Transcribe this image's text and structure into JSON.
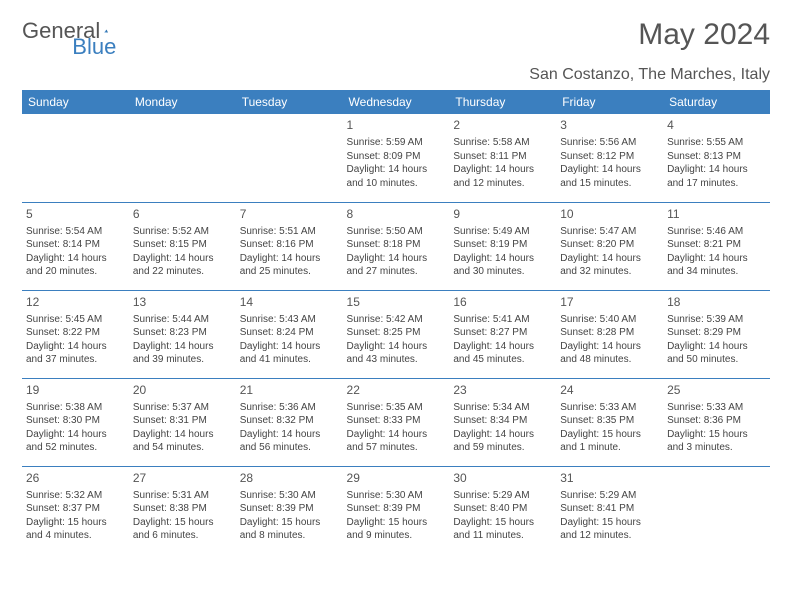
{
  "logo": {
    "text1": "General",
    "text2": "Blue"
  },
  "title": "May 2024",
  "location": "San Costanzo, The Marches, Italy",
  "colors": {
    "header_bg": "#3b7fbf",
    "header_text": "#ffffff",
    "border": "#3b7fbf",
    "body_text": "#444444",
    "title_text": "#555555",
    "page_bg": "#ffffff"
  },
  "weekdays": [
    "Sunday",
    "Monday",
    "Tuesday",
    "Wednesday",
    "Thursday",
    "Friday",
    "Saturday"
  ],
  "weeks": [
    [
      null,
      null,
      null,
      {
        "n": "1",
        "sr": "5:59 AM",
        "ss": "8:09 PM",
        "dl": "14 hours and 10 minutes."
      },
      {
        "n": "2",
        "sr": "5:58 AM",
        "ss": "8:11 PM",
        "dl": "14 hours and 12 minutes."
      },
      {
        "n": "3",
        "sr": "5:56 AM",
        "ss": "8:12 PM",
        "dl": "14 hours and 15 minutes."
      },
      {
        "n": "4",
        "sr": "5:55 AM",
        "ss": "8:13 PM",
        "dl": "14 hours and 17 minutes."
      }
    ],
    [
      {
        "n": "5",
        "sr": "5:54 AM",
        "ss": "8:14 PM",
        "dl": "14 hours and 20 minutes."
      },
      {
        "n": "6",
        "sr": "5:52 AM",
        "ss": "8:15 PM",
        "dl": "14 hours and 22 minutes."
      },
      {
        "n": "7",
        "sr": "5:51 AM",
        "ss": "8:16 PM",
        "dl": "14 hours and 25 minutes."
      },
      {
        "n": "8",
        "sr": "5:50 AM",
        "ss": "8:18 PM",
        "dl": "14 hours and 27 minutes."
      },
      {
        "n": "9",
        "sr": "5:49 AM",
        "ss": "8:19 PM",
        "dl": "14 hours and 30 minutes."
      },
      {
        "n": "10",
        "sr": "5:47 AM",
        "ss": "8:20 PM",
        "dl": "14 hours and 32 minutes."
      },
      {
        "n": "11",
        "sr": "5:46 AM",
        "ss": "8:21 PM",
        "dl": "14 hours and 34 minutes."
      }
    ],
    [
      {
        "n": "12",
        "sr": "5:45 AM",
        "ss": "8:22 PM",
        "dl": "14 hours and 37 minutes."
      },
      {
        "n": "13",
        "sr": "5:44 AM",
        "ss": "8:23 PM",
        "dl": "14 hours and 39 minutes."
      },
      {
        "n": "14",
        "sr": "5:43 AM",
        "ss": "8:24 PM",
        "dl": "14 hours and 41 minutes."
      },
      {
        "n": "15",
        "sr": "5:42 AM",
        "ss": "8:25 PM",
        "dl": "14 hours and 43 minutes."
      },
      {
        "n": "16",
        "sr": "5:41 AM",
        "ss": "8:27 PM",
        "dl": "14 hours and 45 minutes."
      },
      {
        "n": "17",
        "sr": "5:40 AM",
        "ss": "8:28 PM",
        "dl": "14 hours and 48 minutes."
      },
      {
        "n": "18",
        "sr": "5:39 AM",
        "ss": "8:29 PM",
        "dl": "14 hours and 50 minutes."
      }
    ],
    [
      {
        "n": "19",
        "sr": "5:38 AM",
        "ss": "8:30 PM",
        "dl": "14 hours and 52 minutes."
      },
      {
        "n": "20",
        "sr": "5:37 AM",
        "ss": "8:31 PM",
        "dl": "14 hours and 54 minutes."
      },
      {
        "n": "21",
        "sr": "5:36 AM",
        "ss": "8:32 PM",
        "dl": "14 hours and 56 minutes."
      },
      {
        "n": "22",
        "sr": "5:35 AM",
        "ss": "8:33 PM",
        "dl": "14 hours and 57 minutes."
      },
      {
        "n": "23",
        "sr": "5:34 AM",
        "ss": "8:34 PM",
        "dl": "14 hours and 59 minutes."
      },
      {
        "n": "24",
        "sr": "5:33 AM",
        "ss": "8:35 PM",
        "dl": "15 hours and 1 minute."
      },
      {
        "n": "25",
        "sr": "5:33 AM",
        "ss": "8:36 PM",
        "dl": "15 hours and 3 minutes."
      }
    ],
    [
      {
        "n": "26",
        "sr": "5:32 AM",
        "ss": "8:37 PM",
        "dl": "15 hours and 4 minutes."
      },
      {
        "n": "27",
        "sr": "5:31 AM",
        "ss": "8:38 PM",
        "dl": "15 hours and 6 minutes."
      },
      {
        "n": "28",
        "sr": "5:30 AM",
        "ss": "8:39 PM",
        "dl": "15 hours and 8 minutes."
      },
      {
        "n": "29",
        "sr": "5:30 AM",
        "ss": "8:39 PM",
        "dl": "15 hours and 9 minutes."
      },
      {
        "n": "30",
        "sr": "5:29 AM",
        "ss": "8:40 PM",
        "dl": "15 hours and 11 minutes."
      },
      {
        "n": "31",
        "sr": "5:29 AM",
        "ss": "8:41 PM",
        "dl": "15 hours and 12 minutes."
      },
      null
    ]
  ],
  "labels": {
    "sunrise": "Sunrise:",
    "sunset": "Sunset:",
    "daylight": "Daylight:"
  }
}
